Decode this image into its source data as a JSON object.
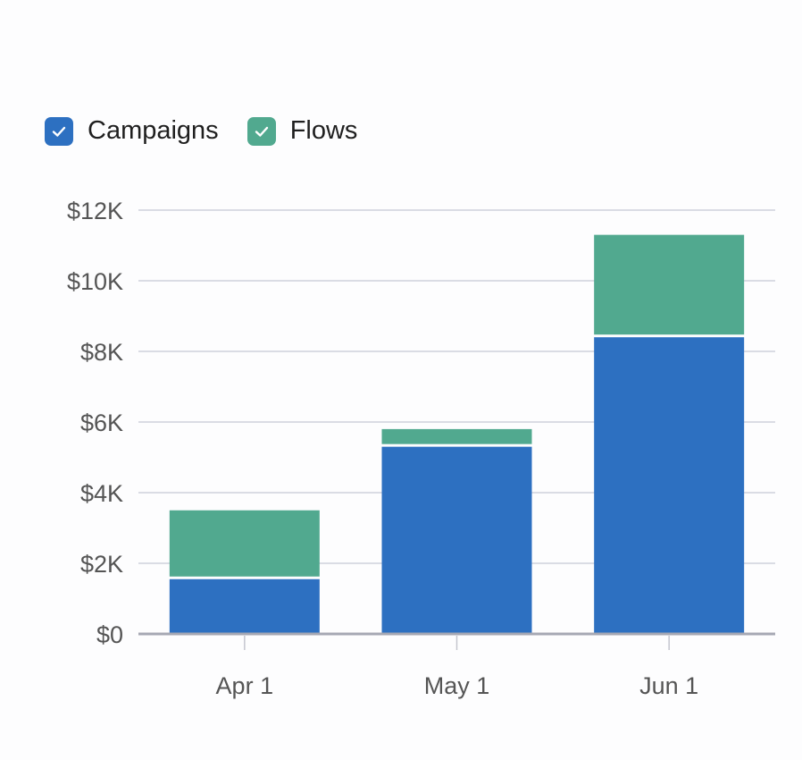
{
  "legend": [
    {
      "label": "Campaigns",
      "color": "#2d70c1",
      "checked": true,
      "icon": "check-icon"
    },
    {
      "label": "Flows",
      "color": "#51a98f",
      "checked": true,
      "icon": "check-icon"
    }
  ],
  "chart_data": {
    "type": "bar",
    "stacked": true,
    "categories": [
      "Apr 1",
      "May 1",
      "Jun 1"
    ],
    "series": [
      {
        "name": "Campaigns",
        "color": "#2d70c1",
        "values": [
          1550,
          5300,
          8400
        ]
      },
      {
        "name": "Flows",
        "color": "#51a98f",
        "values": [
          1950,
          500,
          2900
        ]
      }
    ],
    "ylim": [
      0,
      12000
    ],
    "yticks": [
      0,
      2000,
      4000,
      6000,
      8000,
      10000,
      12000
    ],
    "ytick_labels": [
      "$0",
      "$2K",
      "$4K",
      "$6K",
      "$8K",
      "$10K",
      "$12K"
    ],
    "grid": true,
    "legend_position": "top-left",
    "title": "",
    "xlabel": "",
    "ylabel": ""
  }
}
